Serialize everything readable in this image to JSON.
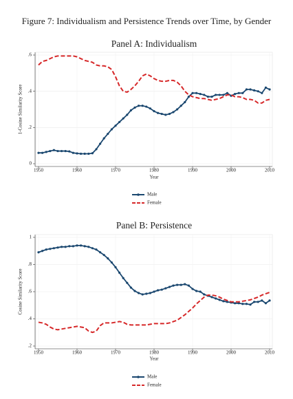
{
  "title": "Figure 7: Individualism and Persistence Trends over Time, by Gender",
  "chart_data": [
    {
      "type": "line",
      "title": "Panel A: Individualism",
      "xlabel": "Year",
      "ylabel": "1-Cosine Similarity Score",
      "x": [
        1950,
        1951,
        1952,
        1953,
        1954,
        1955,
        1956,
        1957,
        1958,
        1959,
        1960,
        1961,
        1962,
        1963,
        1964,
        1965,
        1966,
        1967,
        1968,
        1969,
        1970,
        1971,
        1972,
        1973,
        1974,
        1975,
        1976,
        1977,
        1978,
        1979,
        1980,
        1981,
        1982,
        1983,
        1984,
        1985,
        1986,
        1987,
        1988,
        1989,
        1990,
        1991,
        1992,
        1993,
        1994,
        1995,
        1996,
        1997,
        1998,
        1999,
        2000,
        2001,
        2002,
        2003,
        2004,
        2005,
        2006,
        2007,
        2008,
        2009,
        2010
      ],
      "xlim": [
        1950,
        2010
      ],
      "xticks": [
        1950,
        1960,
        1970,
        1980,
        1990,
        2000,
        2010
      ],
      "ylim": [
        0,
        0.6
      ],
      "yticks": [
        0,
        {
          "value": 0.2,
          "label": ".2"
        },
        {
          "value": 0.4,
          "label": ".4"
        },
        {
          "value": 0.6,
          "label": ".6"
        }
      ],
      "grid": true,
      "legend": "bottom",
      "series": [
        {
          "name": "Male",
          "color": "#1a476f",
          "style": "solid",
          "marker": true,
          "values": [
            0.06,
            0.06,
            0.065,
            0.07,
            0.075,
            0.07,
            0.07,
            0.07,
            0.068,
            0.06,
            0.057,
            0.055,
            0.055,
            0.055,
            0.058,
            0.08,
            0.11,
            0.14,
            0.165,
            0.19,
            0.21,
            0.23,
            0.25,
            0.27,
            0.295,
            0.31,
            0.32,
            0.32,
            0.315,
            0.305,
            0.29,
            0.28,
            0.275,
            0.27,
            0.275,
            0.285,
            0.3,
            0.32,
            0.34,
            0.37,
            0.39,
            0.39,
            0.385,
            0.38,
            0.37,
            0.37,
            0.38,
            0.38,
            0.38,
            0.39,
            0.375,
            0.385,
            0.39,
            0.39,
            0.41,
            0.41,
            0.405,
            0.4,
            0.39,
            0.42,
            0.41
          ]
        },
        {
          "name": "Female",
          "color": "#d62728",
          "style": "dashed",
          "marker": false,
          "values": [
            0.545,
            0.565,
            0.57,
            0.58,
            0.59,
            0.595,
            0.595,
            0.595,
            0.595,
            0.595,
            0.59,
            0.58,
            0.57,
            0.565,
            0.56,
            0.545,
            0.54,
            0.54,
            0.535,
            0.52,
            0.48,
            0.43,
            0.4,
            0.395,
            0.41,
            0.43,
            0.455,
            0.485,
            0.495,
            0.485,
            0.47,
            0.46,
            0.455,
            0.455,
            0.46,
            0.46,
            0.45,
            0.43,
            0.4,
            0.38,
            0.37,
            0.365,
            0.36,
            0.36,
            0.355,
            0.35,
            0.355,
            0.36,
            0.37,
            0.38,
            0.38,
            0.37,
            0.37,
            0.365,
            0.355,
            0.355,
            0.35,
            0.335,
            0.335,
            0.35,
            0.355
          ]
        }
      ]
    },
    {
      "type": "line",
      "title": "Panel B: Persistence",
      "xlabel": "Year",
      "ylabel": "Cosine Similarity Score",
      "x": [
        1950,
        1951,
        1952,
        1953,
        1954,
        1955,
        1956,
        1957,
        1958,
        1959,
        1960,
        1961,
        1962,
        1963,
        1964,
        1965,
        1966,
        1967,
        1968,
        1969,
        1970,
        1971,
        1972,
        1973,
        1974,
        1975,
        1976,
        1977,
        1978,
        1979,
        1980,
        1981,
        1982,
        1983,
        1984,
        1985,
        1986,
        1987,
        1988,
        1989,
        1990,
        1991,
        1992,
        1993,
        1994,
        1995,
        1996,
        1997,
        1998,
        1999,
        2000,
        2001,
        2002,
        2003,
        2004,
        2005,
        2006,
        2007,
        2008,
        2009,
        2010
      ],
      "xlim": [
        1950,
        2010
      ],
      "xticks": [
        1950,
        1960,
        1970,
        1980,
        1990,
        2000,
        2010
      ],
      "ylim": [
        0.2,
        1
      ],
      "yticks": [
        {
          "value": 0.2,
          "label": ".2"
        },
        {
          "value": 0.4,
          "label": ".4"
        },
        {
          "value": 0.6,
          "label": ".6"
        },
        {
          "value": 0.8,
          "label": ".8"
        },
        1
      ],
      "grid": true,
      "legend": "bottom",
      "series": [
        {
          "name": "Male",
          "color": "#1a476f",
          "style": "solid",
          "marker": true,
          "values": [
            0.89,
            0.9,
            0.91,
            0.915,
            0.92,
            0.925,
            0.93,
            0.93,
            0.935,
            0.935,
            0.94,
            0.94,
            0.935,
            0.93,
            0.92,
            0.91,
            0.89,
            0.87,
            0.845,
            0.815,
            0.78,
            0.74,
            0.7,
            0.665,
            0.63,
            0.605,
            0.59,
            0.58,
            0.585,
            0.59,
            0.6,
            0.61,
            0.615,
            0.625,
            0.635,
            0.645,
            0.65,
            0.65,
            0.655,
            0.645,
            0.62,
            0.605,
            0.6,
            0.58,
            0.57,
            0.56,
            0.55,
            0.54,
            0.53,
            0.525,
            0.52,
            0.515,
            0.515,
            0.51,
            0.51,
            0.505,
            0.525,
            0.525,
            0.535,
            0.515,
            0.535
          ]
        },
        {
          "name": "Female",
          "color": "#d62728",
          "style": "dashed",
          "marker": false,
          "values": [
            0.375,
            0.37,
            0.36,
            0.34,
            0.325,
            0.32,
            0.325,
            0.33,
            0.335,
            0.34,
            0.345,
            0.34,
            0.335,
            0.31,
            0.3,
            0.31,
            0.35,
            0.37,
            0.37,
            0.37,
            0.375,
            0.38,
            0.375,
            0.36,
            0.355,
            0.355,
            0.355,
            0.355,
            0.355,
            0.36,
            0.365,
            0.365,
            0.365,
            0.365,
            0.37,
            0.38,
            0.39,
            0.41,
            0.43,
            0.455,
            0.48,
            0.51,
            0.535,
            0.56,
            0.575,
            0.575,
            0.57,
            0.56,
            0.545,
            0.535,
            0.525,
            0.525,
            0.525,
            0.53,
            0.535,
            0.54,
            0.55,
            0.56,
            0.575,
            0.585,
            0.595
          ]
        }
      ]
    }
  ]
}
